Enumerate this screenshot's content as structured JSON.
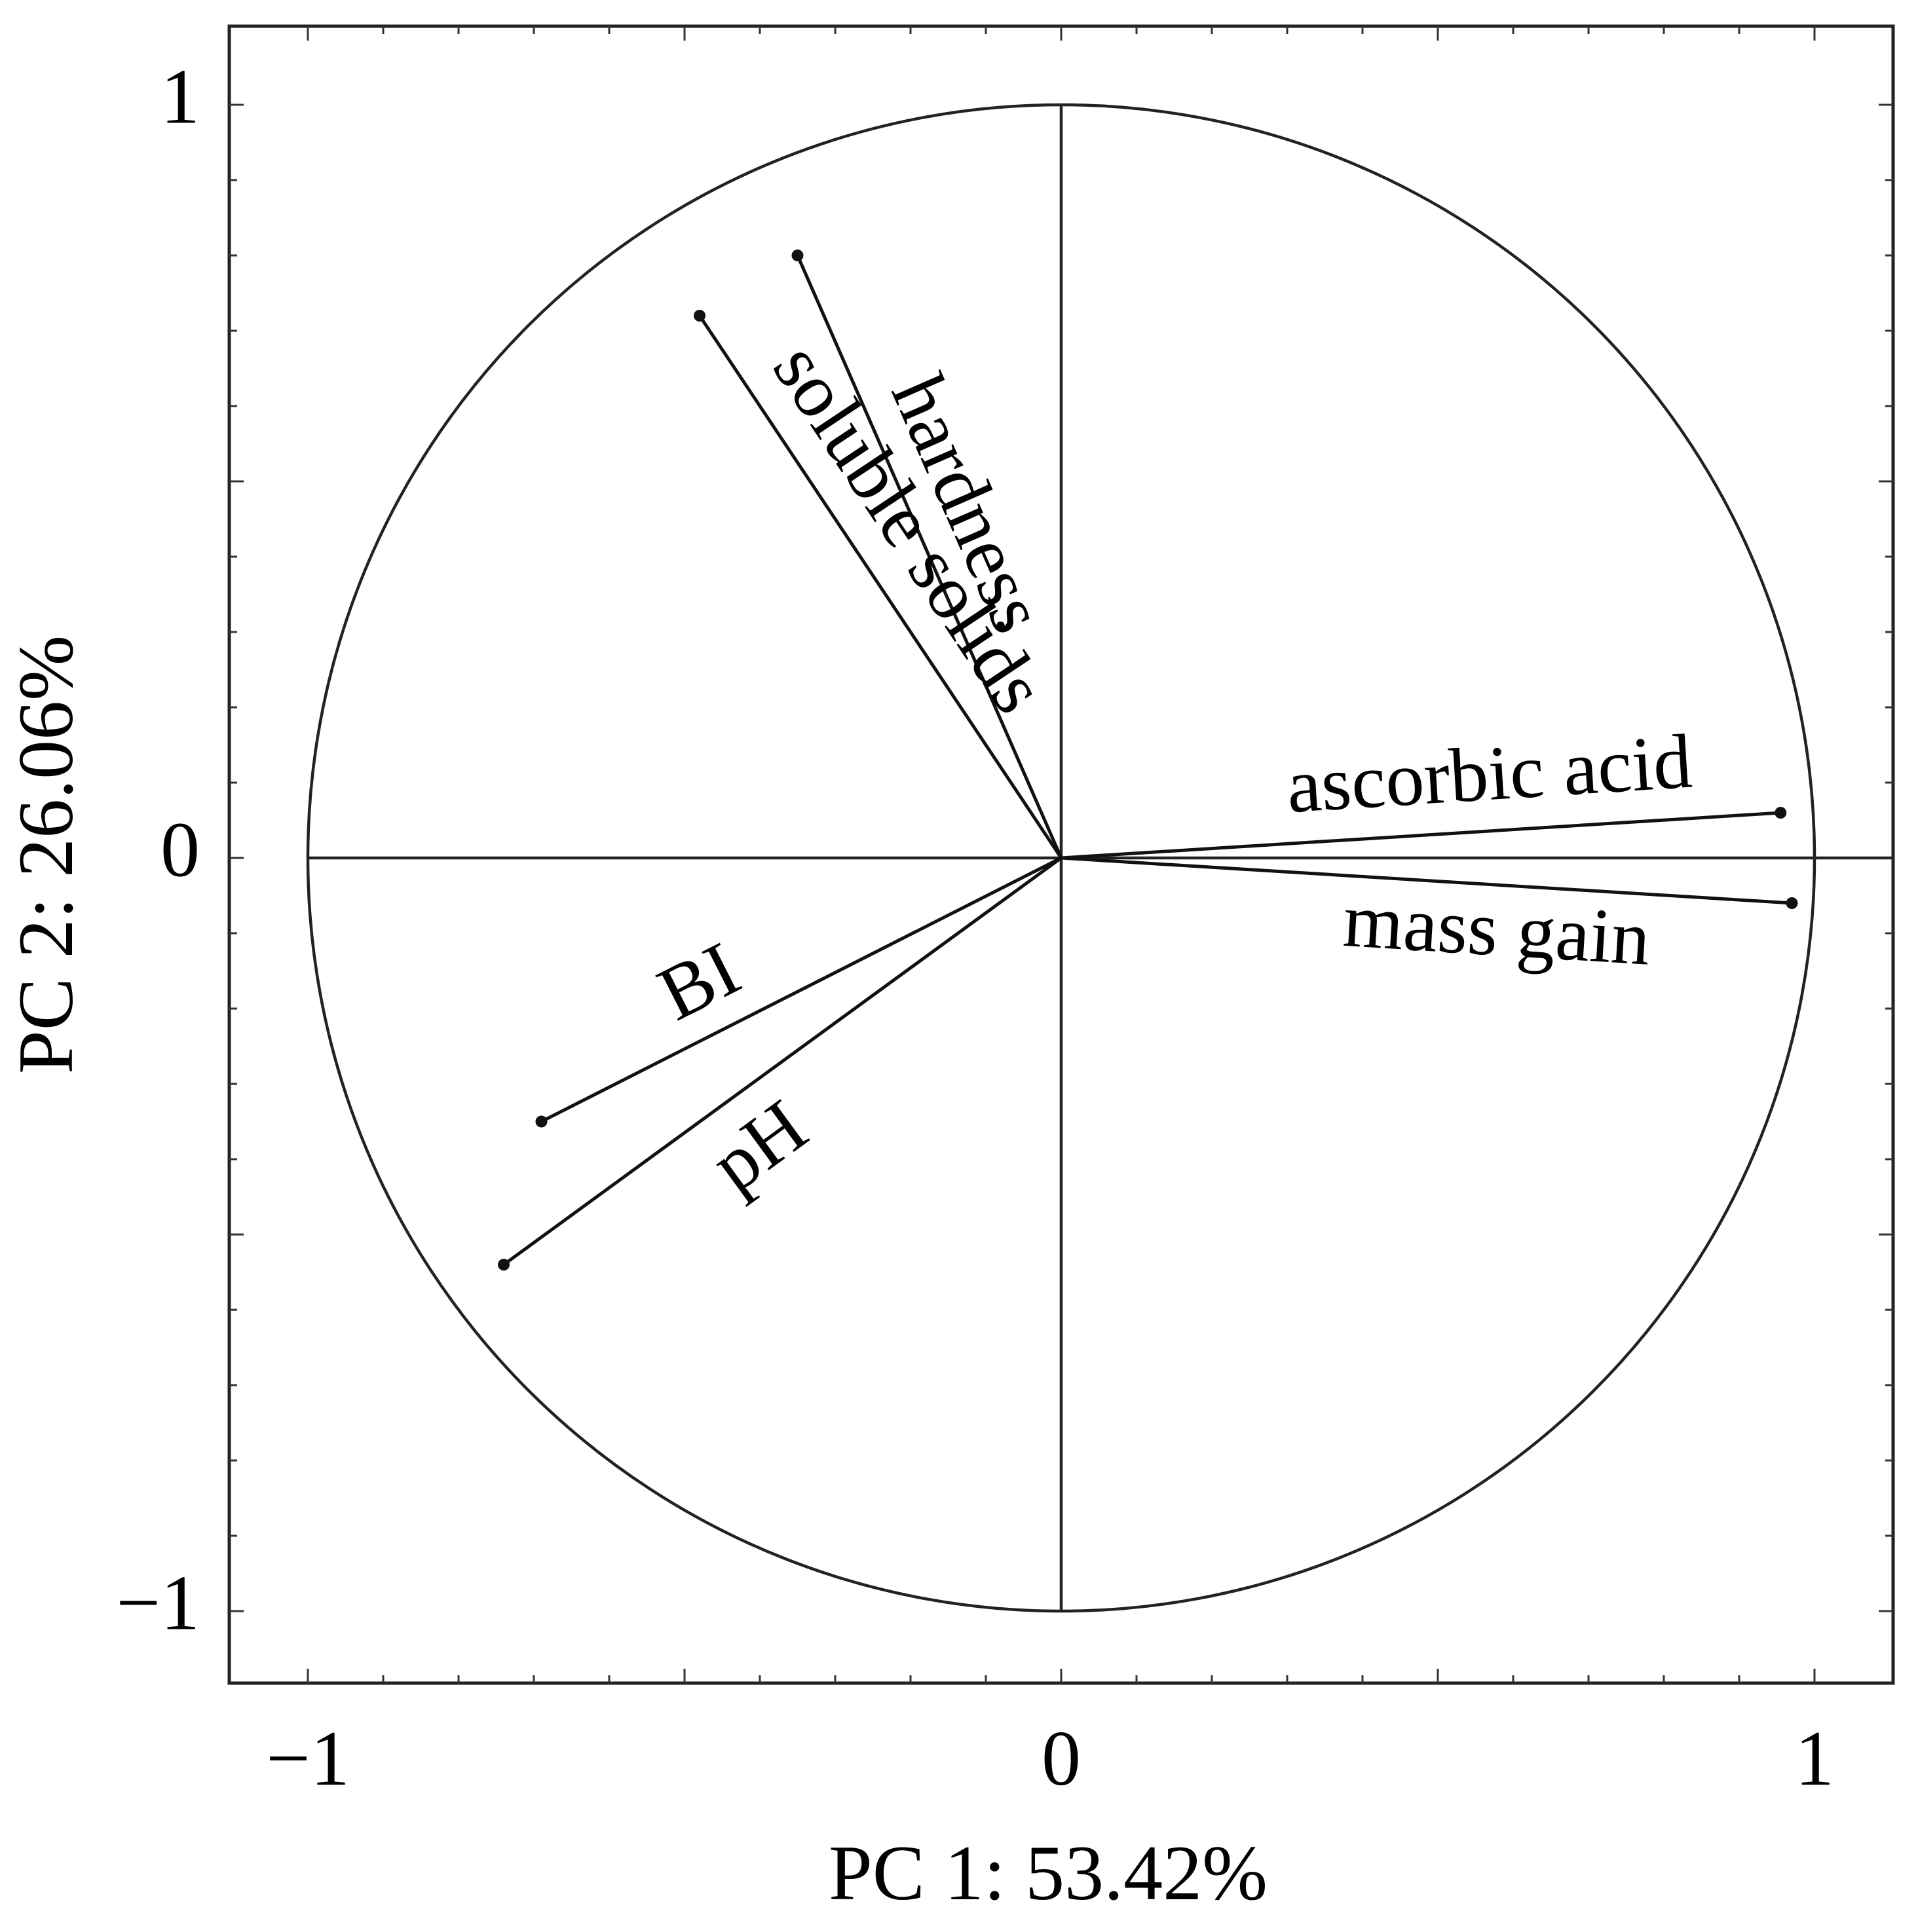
{
  "chart_data": {
    "type": "scatter",
    "subtype": "pca-correlation-circle",
    "title": "",
    "xlabel": "PC 1: 53.42%",
    "ylabel": "PC 2: 26.06%",
    "xlim": [
      -1.1,
      1.1
    ],
    "ylim": [
      -1.1,
      1.1
    ],
    "x_ticks": [
      -1,
      0,
      1
    ],
    "y_ticks": [
      -1,
      0,
      1
    ],
    "x_tick_labels": [
      "−1",
      "0",
      "1"
    ],
    "y_tick_labels": [
      "−1",
      "0",
      "1"
    ],
    "grid": false,
    "legend": "none",
    "unit_circle": true,
    "loadings": [
      {
        "label": "hardness",
        "x": -0.35,
        "y": 0.8
      },
      {
        "label": "soluble solids",
        "x": -0.48,
        "y": 0.72
      },
      {
        "label": "ascorbic acid",
        "x": 0.955,
        "y": 0.06
      },
      {
        "label": "mass gain",
        "x": 0.97,
        "y": -0.06
      },
      {
        "label": "BI",
        "x": -0.69,
        "y": -0.35
      },
      {
        "label": "pH",
        "x": -0.74,
        "y": -0.54
      }
    ]
  }
}
